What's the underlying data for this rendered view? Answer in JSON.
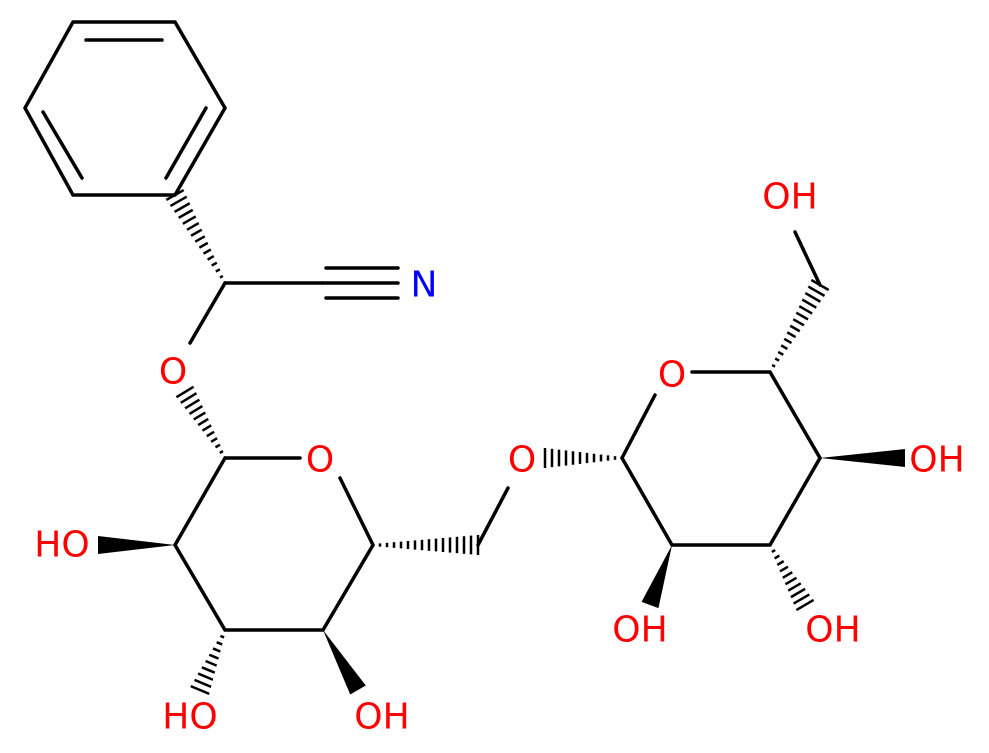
{
  "nodes": [
    {
      "label": "N"
    },
    {
      "label": "O"
    },
    {
      "label": "O"
    },
    {
      "label": "HO"
    },
    {
      "label": "HO"
    },
    {
      "label": "OH"
    },
    {
      "label": "O"
    },
    {
      "label": "O"
    },
    {
      "label": "OH"
    },
    {
      "label": "OH"
    },
    {
      "label": "OH"
    },
    {
      "label": "OH"
    }
  ]
}
